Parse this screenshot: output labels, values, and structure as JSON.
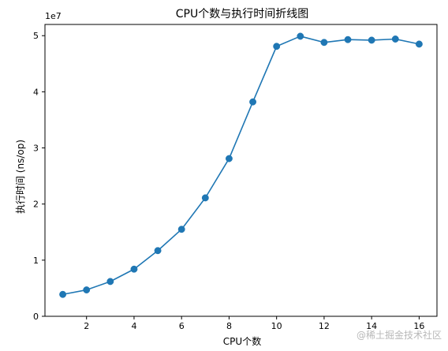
{
  "chart_data": {
    "type": "line",
    "title": "CPU个数与执行时间折线图",
    "xlabel": "CPU个数",
    "ylabel": "执行时间 (ns/op)",
    "y_offset_label": "1e7",
    "xlim": [
      0.25,
      16.75
    ],
    "ylim": [
      0,
      5.2
    ],
    "xticks": [
      2,
      4,
      6,
      8,
      10,
      12,
      14,
      16
    ],
    "yticks": [
      0,
      1,
      2,
      3,
      4,
      5
    ],
    "series": [
      {
        "color": "#1f77b4",
        "marker": "circle",
        "points": [
          {
            "x": 1,
            "y": 0.39
          },
          {
            "x": 2,
            "y": 0.47
          },
          {
            "x": 3,
            "y": 0.62
          },
          {
            "x": 4,
            "y": 0.84
          },
          {
            "x": 5,
            "y": 1.17
          },
          {
            "x": 6,
            "y": 1.55
          },
          {
            "x": 7,
            "y": 2.11
          },
          {
            "x": 8,
            "y": 2.81
          },
          {
            "x": 9,
            "y": 3.82
          },
          {
            "x": 10,
            "y": 4.81
          },
          {
            "x": 11,
            "y": 4.99
          },
          {
            "x": 12,
            "y": 4.88
          },
          {
            "x": 13,
            "y": 4.93
          },
          {
            "x": 14,
            "y": 4.92
          },
          {
            "x": 15,
            "y": 4.94
          },
          {
            "x": 16,
            "y": 4.85
          }
        ]
      }
    ],
    "grid": false
  },
  "watermark": {
    "text": "@稀土掘金技术社区"
  }
}
